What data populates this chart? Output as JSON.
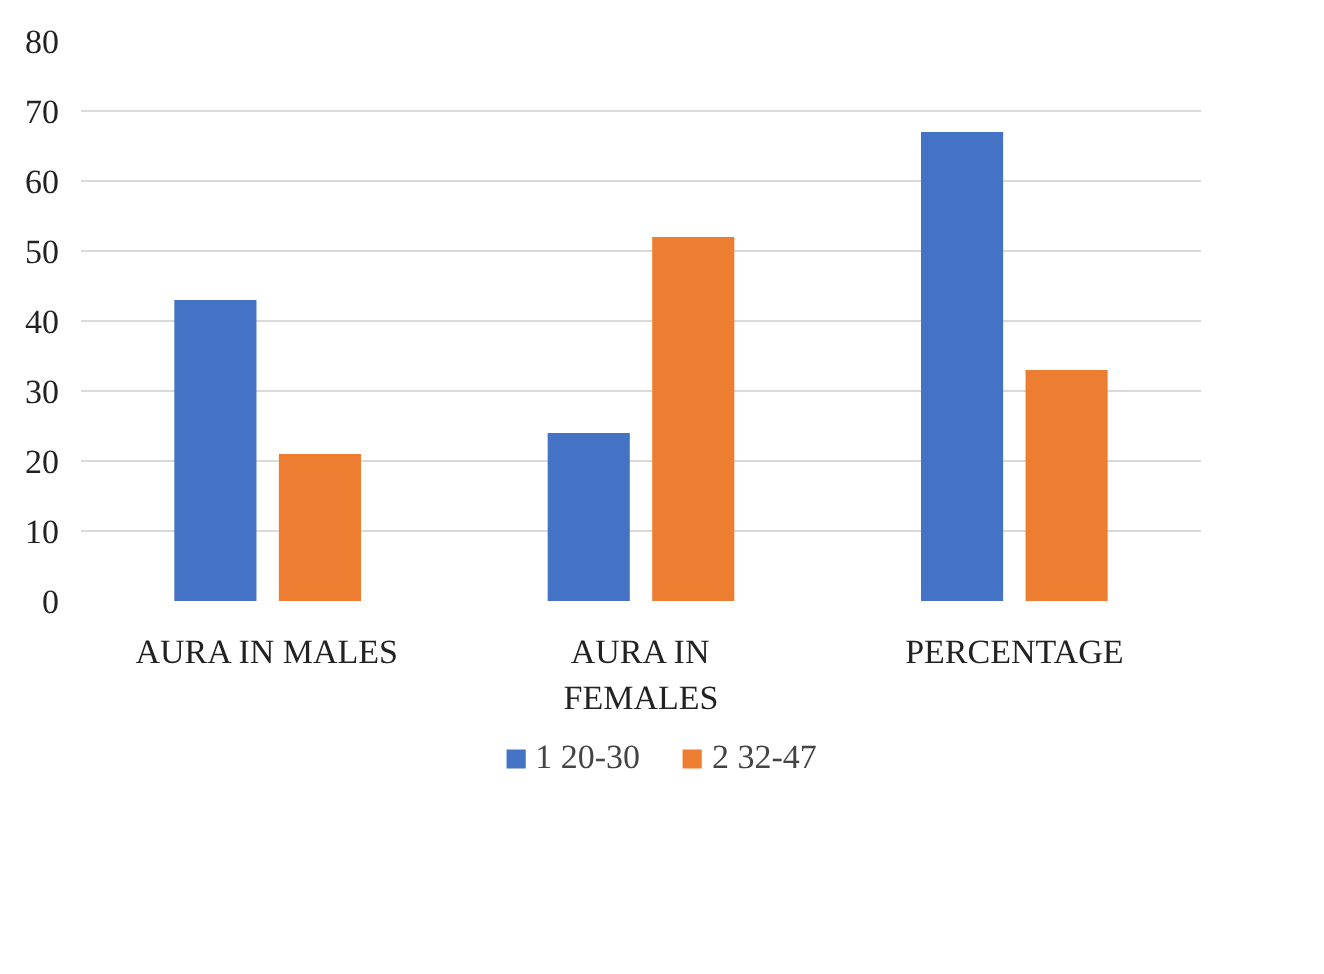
{
  "chart_data": {
    "type": "bar",
    "categories": [
      "AURA IN MALES",
      "AURA IN FEMALES",
      "PERCENTAGE"
    ],
    "series": [
      {
        "name": "1 20-30",
        "color": "#4472c4",
        "values": [
          43,
          24,
          67
        ]
      },
      {
        "name": "2 32-47",
        "color": "#ed7d31",
        "values": [
          21,
          52,
          33
        ]
      }
    ],
    "ylim": [
      0,
      80
    ],
    "yticks": [
      0,
      10,
      20,
      30,
      40,
      50,
      60,
      70,
      80
    ],
    "grid": "y",
    "legend": "bottom"
  }
}
